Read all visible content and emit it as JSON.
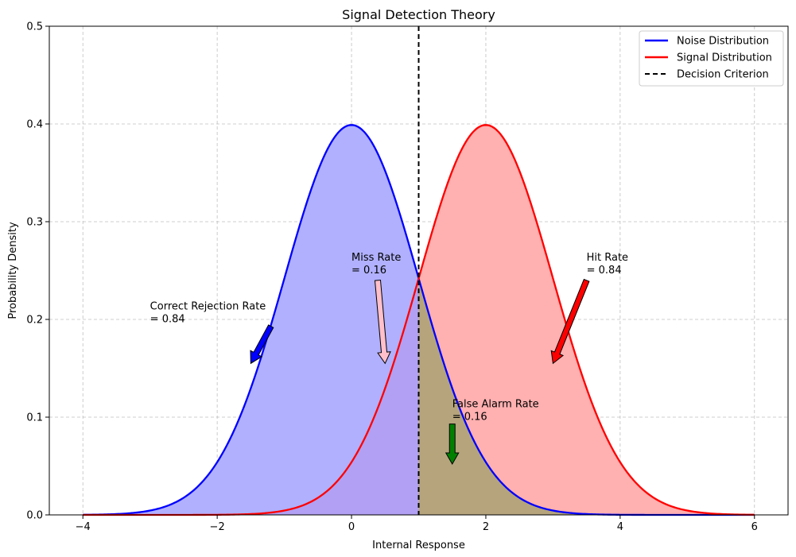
{
  "chart_data": {
    "type": "area",
    "title": "Signal Detection Theory",
    "xlabel": "Internal Response",
    "ylabel": "Probability Density",
    "xlim": [
      -4.5,
      6.5
    ],
    "ylim": [
      0,
      0.5
    ],
    "x_range": [
      -4,
      6
    ],
    "xticks": [
      -4,
      -2,
      0,
      2,
      4,
      6
    ],
    "xtick_labels": [
      "−4",
      "−2",
      "0",
      "2",
      "4",
      "6"
    ],
    "yticks": [
      0.0,
      0.1,
      0.2,
      0.3,
      0.4,
      0.5
    ],
    "ytick_labels": [
      "0.0",
      "0.1",
      "0.2",
      "0.3",
      "0.4",
      "0.5"
    ],
    "grid": true,
    "legend_position": "top-right",
    "series": [
      {
        "name": "Noise Distribution",
        "kind": "normal_pdf",
        "mean": 0,
        "sd": 1,
        "color": "#0000ff",
        "fill": "#b0b0ff"
      },
      {
        "name": "Signal Distribution",
        "kind": "normal_pdf",
        "mean": 2,
        "sd": 1,
        "color": "#ff0000",
        "fill": "#ffb0b0"
      }
    ],
    "criterion": {
      "name": "Decision Criterion",
      "x": 1,
      "color": "#000000"
    },
    "overlap_fill": "#b09f78",
    "noise_right_fill": "#b5a47c",
    "signal_left_fill": "#b1a0f3",
    "annotations": [
      {
        "lines": [
          "Correct Rejection Rate",
          "= 0.84"
        ],
        "text_x": -3.0,
        "text_y": 0.21,
        "arrow_from": [
          -1.2,
          0.193
        ],
        "arrow_to": [
          -1.5,
          0.155
        ],
        "arrow_color": "#0000ff"
      },
      {
        "lines": [
          "Miss Rate",
          "= 0.16"
        ],
        "text_x": 0.0,
        "text_y": 0.26,
        "arrow_from": [
          0.39,
          0.24
        ],
        "arrow_to": [
          0.5,
          0.155
        ],
        "arrow_color": "#ffc0cb"
      },
      {
        "lines": [
          "Hit Rate",
          "= 0.84"
        ],
        "text_x": 3.5,
        "text_y": 0.26,
        "arrow_from": [
          3.5,
          0.24
        ],
        "arrow_to": [
          3.0,
          0.155
        ],
        "arrow_color": "#ff0000"
      },
      {
        "lines": [
          "False Alarm Rate",
          "= 0.16"
        ],
        "text_x": 1.5,
        "text_y": 0.11,
        "arrow_from": [
          1.5,
          0.093
        ],
        "arrow_to": [
          1.5,
          0.052
        ],
        "arrow_color": "#008000"
      }
    ]
  }
}
